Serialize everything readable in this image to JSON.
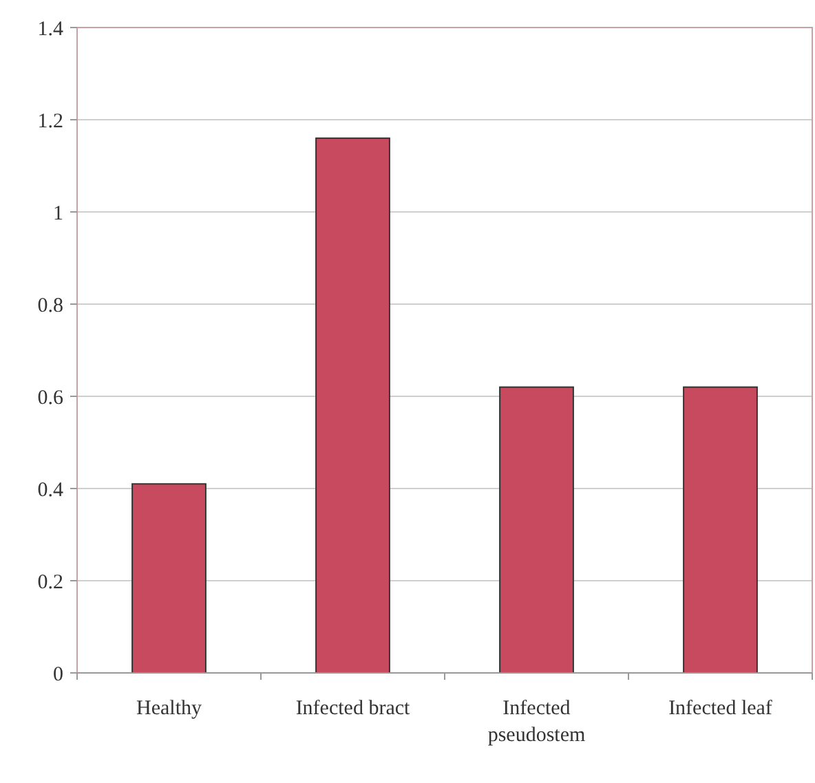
{
  "chart_data": {
    "type": "bar",
    "categories": [
      "Healthy",
      "Infected bract",
      "Infected pseudostem",
      "Infected leaf"
    ],
    "values": [
      0.41,
      1.16,
      0.62,
      0.62
    ],
    "color": "#c84a5e",
    "ylim": [
      0,
      1.4
    ],
    "yticks": [
      0,
      0.2,
      0.4,
      0.6,
      0.8,
      1,
      1.2,
      1.4
    ],
    "grid": "y"
  }
}
